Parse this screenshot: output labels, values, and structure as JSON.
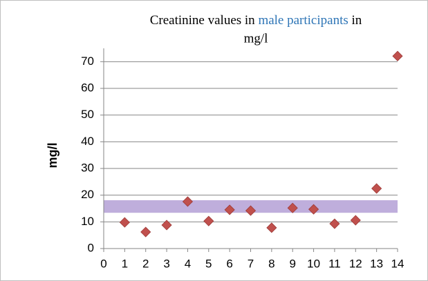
{
  "chart_data": {
    "type": "scatter",
    "title": [
      "Creatinine values in",
      "male participants",
      "in",
      "mg/l"
    ],
    "title_highlight_color": "#2e75b6",
    "ylabel": "mg/l",
    "x": [
      1,
      2,
      3,
      4,
      5,
      6,
      7,
      8,
      9,
      10,
      11,
      12,
      13,
      14
    ],
    "series": [
      {
        "color": "#c0504d",
        "values": [
          9.8,
          6.2,
          8.8,
          17.6,
          10.3,
          14.5,
          14.2,
          7.8,
          15.2,
          14.7,
          9.3,
          10.6,
          22.5,
          72.1
        ]
      }
    ],
    "band": {
      "from": 13.4,
      "to": 18.1,
      "color": "#b4a0d6"
    },
    "xlim": [
      0,
      14
    ],
    "xticks": [
      0,
      1,
      2,
      3,
      4,
      5,
      6,
      7,
      8,
      9,
      10,
      11,
      12,
      13,
      14
    ],
    "ylim": [
      0,
      75
    ],
    "yticks": [
      0,
      10,
      20,
      30,
      40,
      50,
      60,
      70
    ],
    "grid": true
  }
}
